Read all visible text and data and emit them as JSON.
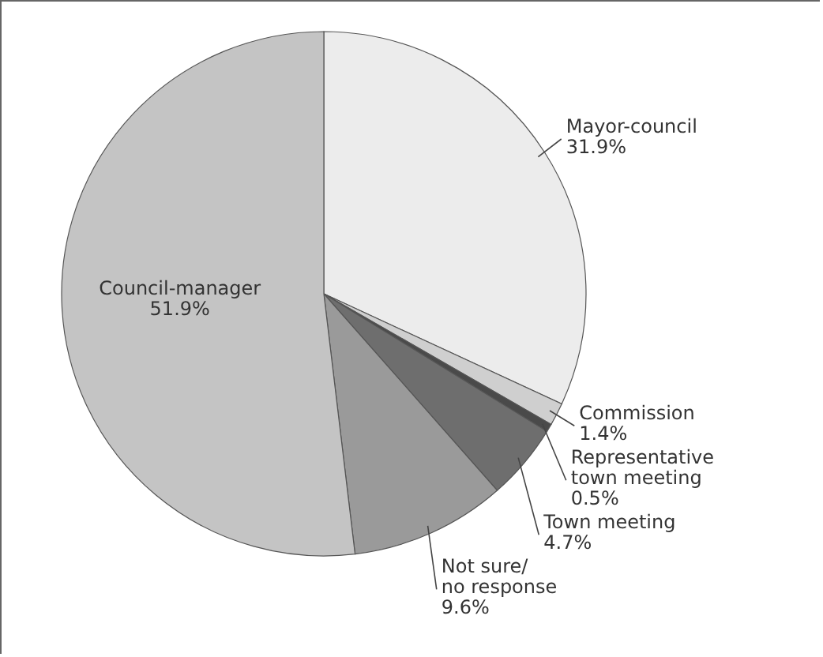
{
  "chart_data": {
    "type": "pie",
    "categories": [
      "Mayor-council",
      "Commission",
      "Representative\ntown meeting",
      "Town meeting",
      "Not sure/\nno response",
      "Council-manager"
    ],
    "values": [
      31.9,
      1.4,
      0.5,
      4.7,
      9.6,
      51.9
    ],
    "value_labels": [
      "31.9%",
      "1.4%",
      "0.5%",
      "4.7%",
      "9.6%",
      "51.9%"
    ],
    "colors": [
      "#ececec",
      "#cfcfcf",
      "#4a4a4a",
      "#6e6e6e",
      "#9a9a9a",
      "#c4c4c4"
    ],
    "legend": false
  }
}
